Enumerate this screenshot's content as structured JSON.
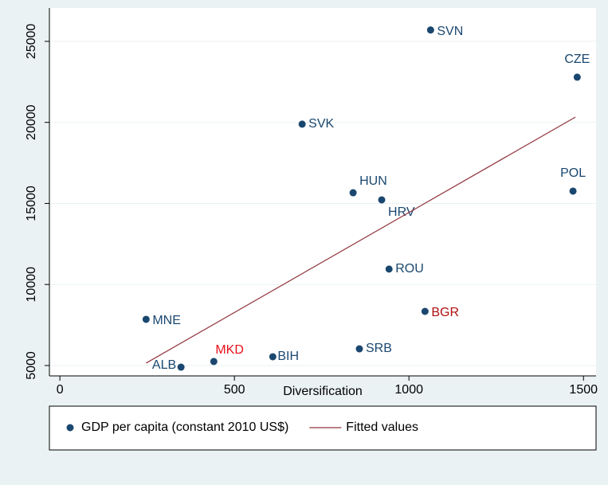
{
  "chart_data": {
    "type": "scatter",
    "x_label": "Diversification",
    "xlim": [
      -30,
      1536
    ],
    "ylim": [
      4360,
      27060
    ],
    "xticks": [
      0,
      500,
      1000,
      1500
    ],
    "yticks": [
      5000,
      10000,
      15000,
      20000,
      25000
    ],
    "grid": true,
    "legend": "bottom",
    "series": [
      {
        "name": "GDP per capita (constant 2010 US$)",
        "type": "scatter",
        "color": "#1a476f",
        "labels": [
          "SVN",
          "CZE",
          "SVK",
          "POL",
          "HUN",
          "HRV",
          "ROU",
          "BGR",
          "MNE",
          "SRB",
          "BIH",
          "MKD",
          "ALB"
        ],
        "label_colors": [
          "#1a476f",
          "#1a476f",
          "#1a476f",
          "#1a476f",
          "#1a476f",
          "#1a476f",
          "#1a476f",
          "#b01010",
          "#1a476f",
          "#1a476f",
          "#1a476f",
          "#e8101a",
          "#1a476f"
        ],
        "x": [
          1062,
          1482,
          694,
          1470,
          840,
          922,
          943,
          1046,
          247,
          858,
          610,
          441,
          347
        ],
        "values": [
          25700,
          22790,
          19890,
          15760,
          15660,
          15220,
          10950,
          8340,
          7850,
          6030,
          5540,
          5250,
          4900
        ]
      },
      {
        "name": "Fitted values",
        "type": "line",
        "color": "#90353b",
        "x": [
          247,
          1477
        ],
        "values": [
          5150,
          20330
        ]
      }
    ]
  }
}
